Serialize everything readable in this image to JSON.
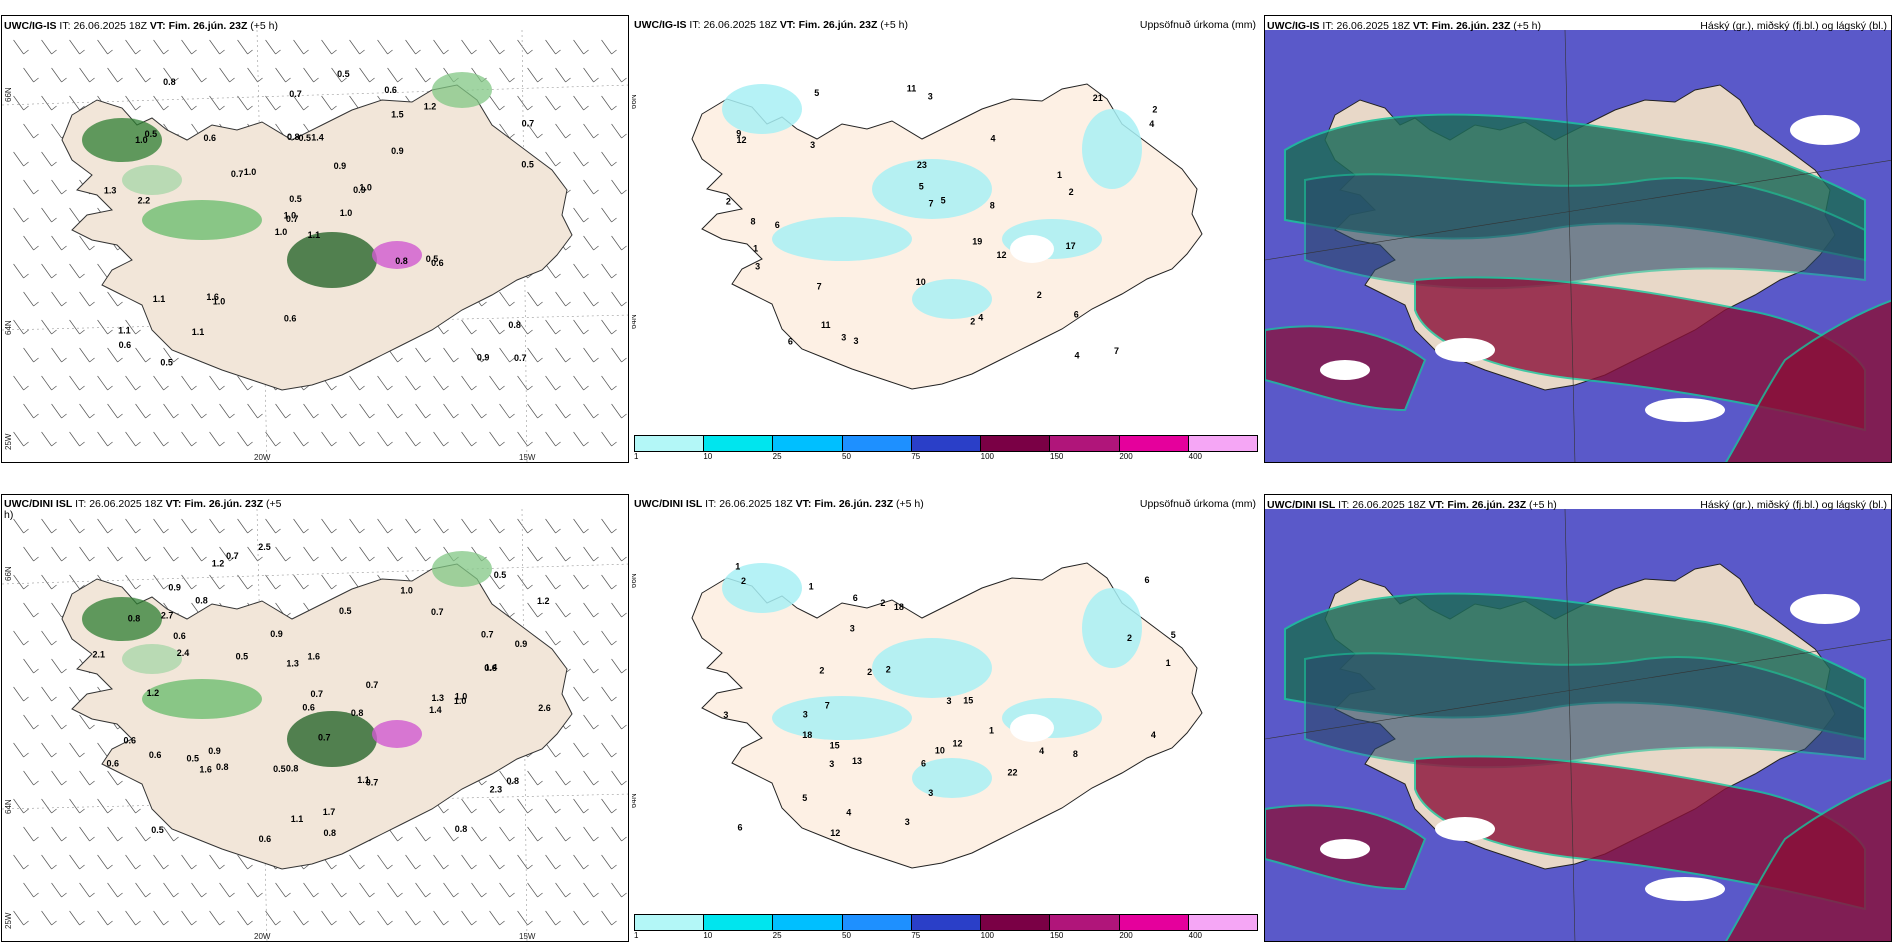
{
  "panels": [
    {
      "id": "igis-wind",
      "model": "UWC/IG-IS",
      "it_label": "IT:",
      "it": "26.06.2025 18Z",
      "vt_label": "VT:",
      "vt": "Fim. 26.jún. 23Z",
      "lead": "(+5 h)",
      "right_title": "",
      "lon_labels": [
        "20W",
        "15W"
      ],
      "lat_labels": [
        "66N",
        "64N",
        "25W"
      ],
      "labels": [
        "1.1",
        "1.0",
        "0.7",
        "1.1",
        "0.9",
        "1.0",
        "0.6",
        "1.4",
        "1.5",
        "1.0",
        "0.8",
        "0.7",
        "2.2",
        "0.7",
        "1.0",
        "0.9",
        "0.5",
        "0.8",
        "0.9",
        "1.1",
        "1.0",
        "0.6",
        "1.1",
        "0.5",
        "1.0",
        "0.6",
        "0.5",
        "0.7",
        "1.3",
        "0.8",
        "0.5",
        "1.0",
        "0.6",
        "0.5",
        "0.6",
        "1.2",
        "1.6",
        "0.9",
        "0.8",
        "0.5",
        "0.5",
        "0.7"
      ]
    },
    {
      "id": "igis-precip",
      "model": "UWC/IG-IS",
      "it_label": "IT:",
      "it": "26.06.2025 18Z",
      "vt_label": "VT:",
      "vt": "Fim. 26.jún. 23Z",
      "lead": "(+5 h)",
      "right_title": "Uppsöfnuð úrkoma (mm)",
      "lat_labels": [
        "66N",
        "64N"
      ],
      "labels": [
        "2",
        "3",
        "1",
        "2",
        "9",
        "7",
        "6",
        "4",
        "23",
        "21",
        "5",
        "17",
        "11",
        "12",
        "3",
        "7",
        "4",
        "8",
        "19",
        "10",
        "2",
        "6",
        "4",
        "5",
        "11",
        "7",
        "12",
        "5",
        "3",
        "2",
        "1",
        "4",
        "8",
        "6",
        "3",
        "3",
        "2"
      ]
    },
    {
      "id": "igis-cloud",
      "model": "UWC/IG-IS",
      "it_label": "IT:",
      "it": "26.06.2025 18Z",
      "vt_label": "VT:",
      "vt": "Fim. 26.jún. 23Z",
      "lead": "(+5 h)",
      "right_title": "Háský (gr.), miðský (fj.bl.) og lágský (bl.)"
    },
    {
      "id": "dini-wind",
      "model": "UWC/DINI ISL",
      "it_label": "IT:",
      "it": "26.06.2025 18Z",
      "vt_label": "VT:",
      "vt": "Fim. 26.jún. 23Z",
      "lead": "(+5",
      "lead2": "h)",
      "right_title": "",
      "lon_labels": [
        "20W",
        "15W"
      ],
      "lat_labels": [
        "66N",
        "64N",
        "25W"
      ],
      "labels": [
        "0.6",
        "0.8",
        "1.3",
        "1.2",
        "0.8",
        "0.5",
        "2.1",
        "0.8",
        "2.3",
        "1.4",
        "0.7",
        "1.3",
        "0.8",
        "1.0",
        "0.7",
        "1.7",
        "0.9",
        "0.6",
        "0.5",
        "0.8",
        "2.6",
        "1.6",
        "0.8",
        "0.6",
        "0.9",
        "0.5",
        "1.2",
        "0.7",
        "1.6",
        "1.2",
        "0.7",
        "1.1",
        "2.7",
        "0.9",
        "1.0",
        "0.5",
        "0.8",
        "1.1",
        "2.4",
        "0.5",
        "0.7",
        "1.4",
        "0.8",
        "2.5",
        "0.7",
        "0.6",
        "0.5",
        "0.9",
        "0.6",
        "0.6",
        "0.7",
        "1.0",
        "0.6"
      ]
    },
    {
      "id": "dini-precip",
      "model": "UWC/DINI ISL",
      "it_label": "IT:",
      "it": "26.06.2025 18Z",
      "vt_label": "VT:",
      "vt": "Fim. 26.jún. 23Z",
      "lead": "(+5 h)",
      "right_title": "Uppsöfnuð úrkoma (mm)",
      "lat_labels": [
        "66N",
        "64N"
      ],
      "labels": [
        "2",
        "1",
        "3",
        "6",
        "5",
        "22",
        "18",
        "13",
        "6",
        "4",
        "3",
        "15",
        "12",
        "18",
        "10",
        "2",
        "6",
        "5",
        "3",
        "2",
        "1",
        "3",
        "4",
        "7",
        "3",
        "12",
        "15",
        "8",
        "3",
        "2",
        "1",
        "6",
        "2",
        "4",
        "3",
        "2",
        "1"
      ]
    },
    {
      "id": "dini-cloud",
      "model": "UWC/DINI ISL",
      "it_label": "IT:",
      "it": "26.06.2025 18Z",
      "vt_label": "VT:",
      "vt": "Fim. 26.jún. 23Z",
      "lead": "(+5 h)",
      "right_title": "Háský (gr.), miðský (fj.bl.) og lágský (bl.)"
    }
  ],
  "colorbar": {
    "colors": [
      "#b3f7f7",
      "#00e5ee",
      "#00bfff",
      "#1e90ff",
      "#2a3fc8",
      "#7a0045",
      "#b0157a",
      "#e5009c",
      "#f5a6f5"
    ],
    "ticks": [
      "1",
      "10",
      "25",
      "50",
      "75",
      "100",
      "150",
      "200",
      "400"
    ]
  }
}
